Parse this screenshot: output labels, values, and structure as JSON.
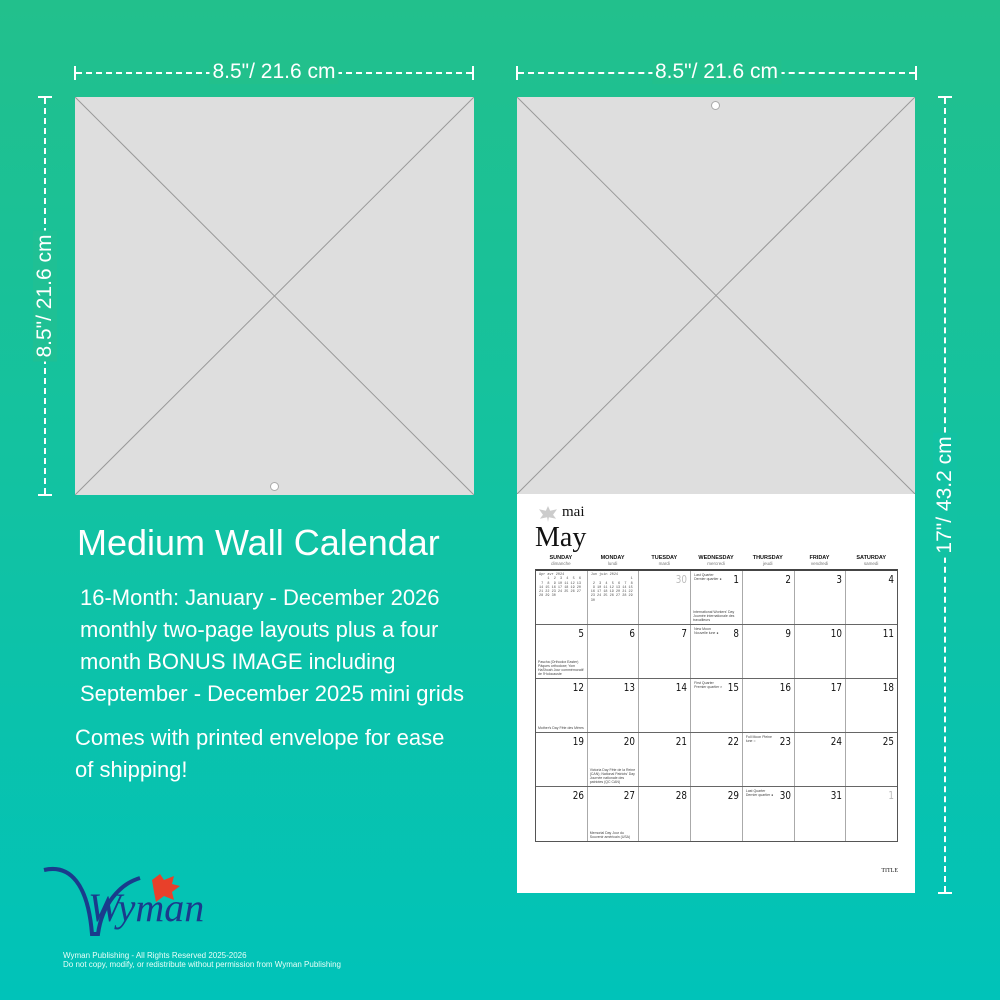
{
  "dimensions": {
    "left_width": "8.5\"/ 21.6 cm",
    "left_height": "8.5\"/ 21.6 cm",
    "right_width": "8.5\"/ 21.6 cm",
    "right_height": "17\"/ 43.2 cm"
  },
  "product": {
    "title": "Medium Wall Calendar",
    "description": "16-Month: January - December 2026 monthly two-page layouts plus a four month BONUS IMAGE including September - December 2025 mini grids",
    "note": "Comes with printed envelope for ease of shipping!"
  },
  "calendar": {
    "month_fr": "mai",
    "month": "May",
    "title_tag": "TITLE",
    "days": [
      [
        "SUNDAY",
        "dimanche"
      ],
      [
        "MONDAY",
        "lundi"
      ],
      [
        "TUESDAY",
        "mardi"
      ],
      [
        "WEDNESDAY",
        "mercredi"
      ],
      [
        "THURSDAY",
        "jeudi"
      ],
      [
        "FRIDAY",
        "vendredi"
      ],
      [
        "SATURDAY",
        "samedi"
      ]
    ],
    "mini_prev": "Apr avr 2024\n    1  2  3  4  5  6\n 7  8  9 10 11 12 13\n14 15 16 17 18 19 20\n21 22 23 24 25 26 27\n28 29 30",
    "mini_next": "Jun juin 2024\n                   1\n 2  3  4  5  6  7  8\n 9 10 11 12 13 14 15\n16 17 18 19 20 21 22\n23 24 25 26 27 28 29\n30",
    "weeks": [
      [
        {
          "mini": "prev"
        },
        {
          "mini": "next"
        },
        {
          "n": "30",
          "dim": true
        },
        {
          "n": "1",
          "moon": "Last Quarter Dernier quartier ●",
          "ev": "International Workers' Day Journée internationale des travailleurs"
        },
        {
          "n": "2"
        },
        {
          "n": "3"
        },
        {
          "n": "4"
        }
      ],
      [
        {
          "n": "5",
          "ev": "Pascha (Orthodox Easter) Pâques orthodoxe; Yom HaShoah Jour commémoratif de l'Holocauste"
        },
        {
          "n": "6"
        },
        {
          "n": "7"
        },
        {
          "n": "8",
          "moon": "New Moon Nouvelle lune ●"
        },
        {
          "n": "9"
        },
        {
          "n": "10"
        },
        {
          "n": "11"
        }
      ],
      [
        {
          "n": "12",
          "ev": "Mother's Day Fête des Mères"
        },
        {
          "n": "13"
        },
        {
          "n": "14"
        },
        {
          "n": "15",
          "moon": "First Quarter Premier quartier ◐"
        },
        {
          "n": "16"
        },
        {
          "n": "17"
        },
        {
          "n": "18"
        }
      ],
      [
        {
          "n": "19"
        },
        {
          "n": "20",
          "ev": "Victoria Day Fête de la Reine (CAN); National Patriots' Day Journée nationale des patriotes (QC CAN)"
        },
        {
          "n": "21"
        },
        {
          "n": "22"
        },
        {
          "n": "23",
          "moon": "Full Moon Pleine lune ○"
        },
        {
          "n": "24"
        },
        {
          "n": "25"
        }
      ],
      [
        {
          "n": "26"
        },
        {
          "n": "27",
          "ev": "Memorial Day Jour du Souvenir américain (USA)"
        },
        {
          "n": "28"
        },
        {
          "n": "29"
        },
        {
          "n": "30",
          "moon": "Last Quarter Dernier quartier ●"
        },
        {
          "n": "31"
        },
        {
          "n": "1",
          "dim": true
        }
      ]
    ]
  },
  "brand": {
    "logo_text": "Wyman",
    "copyright_line1": "Wyman Publishing - All Rights Reserved 2025-2026",
    "copyright_line2": "Do not copy, modify, or redistribute without permission from Wyman Publishing"
  },
  "colors": {
    "bg_top": "#22c08c",
    "bg_bottom": "#00c3b9",
    "logo_blue": "#1a3b8c",
    "logo_red": "#e8402a"
  }
}
